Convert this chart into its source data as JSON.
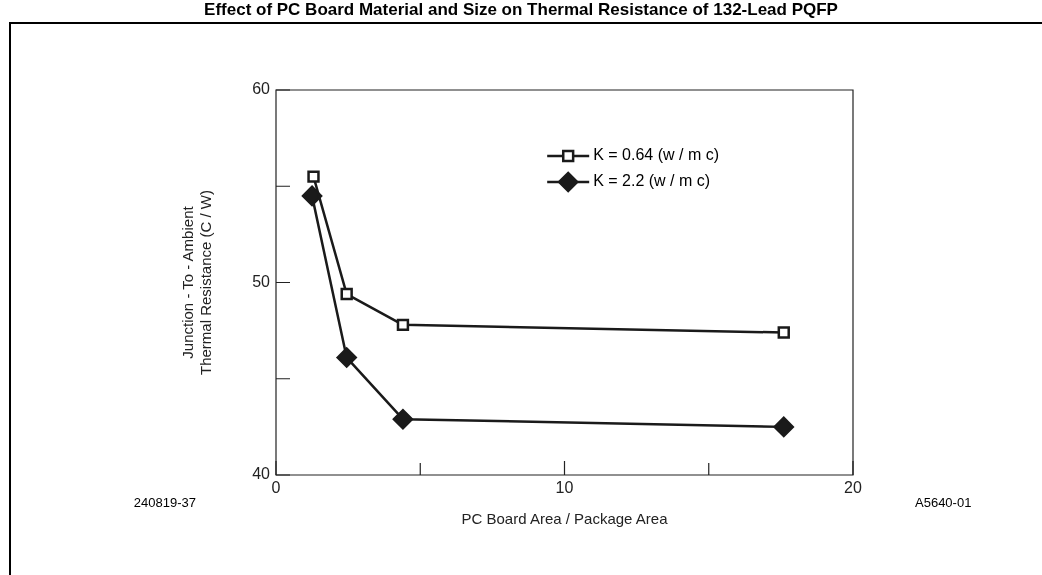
{
  "chart_data": {
    "type": "line",
    "title": "Effect of PC Board Material and Size on Thermal Resistance of 132-Lead PQFP",
    "xlabel": "PC Board Area / Package Area",
    "ylabel": "Junction - To - Ambient\nThermal Resistance (C / W)",
    "annotations": [
      "240819-37",
      "A5640-01"
    ],
    "xlim": [
      0,
      20
    ],
    "xticks": [
      0,
      {
        "value": 5,
        "label": null
      },
      10,
      {
        "value": 15,
        "label": null
      },
      20
    ],
    "ylim": [
      40,
      60
    ],
    "yticks": [
      40,
      {
        "value": 45,
        "label": null
      },
      50,
      {
        "value": 55,
        "label": null
      },
      60
    ],
    "grid": false,
    "legend": "top right",
    "line_style": "solid",
    "series": [
      {
        "name": "K = 0.64 (w / m c)",
        "color": "#1a1a1a",
        "marker": "square",
        "x": [
          1.3,
          2.45,
          4.4,
          17.6
        ],
        "values": [
          55.5,
          49.4,
          47.8,
          47.4
        ]
      },
      {
        "name": "K = 2.2 (w / m c)",
        "color": "#1a1a1a",
        "marker": "diamond",
        "x": [
          1.25,
          2.45,
          4.4,
          17.6
        ],
        "values": [
          54.5,
          46.1,
          42.9,
          42.5
        ]
      }
    ]
  }
}
